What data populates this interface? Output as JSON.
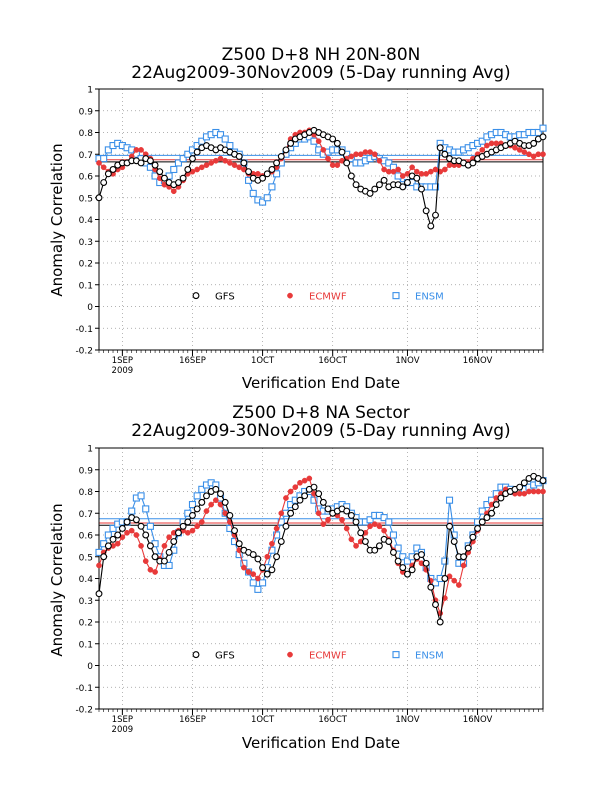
{
  "chart_data": [
    {
      "type": "line",
      "title": "Z500 D+8 NH 20N-80N",
      "subtitle": "22Aug2009-30Nov2009 (5-Day running Avg)",
      "xlabel": "Verification End Date",
      "ylabel": "Anomaly Correlation",
      "xlim": [
        "2009-08-27",
        "2009-11-30"
      ],
      "ylim": [
        -0.2,
        1
      ],
      "yticks": [
        "-0.2",
        "-0.1",
        "0",
        "0.1",
        "0.2",
        "0.3",
        "0.4",
        "0.5",
        "0.6",
        "0.7",
        "0.8",
        "0.9",
        "1"
      ],
      "xticks": [
        {
          "date": "2009-09-01",
          "label": "1SEP",
          "sublabel": "2009"
        },
        {
          "date": "2009-09-16",
          "label": "16SEP",
          "sublabel": ""
        },
        {
          "date": "2009-10-01",
          "label": "1OCT",
          "sublabel": ""
        },
        {
          "date": "2009-10-16",
          "label": "16OCT",
          "sublabel": ""
        },
        {
          "date": "2009-11-01",
          "label": "1NOV",
          "sublabel": ""
        },
        {
          "date": "2009-11-16",
          "label": "16NOV",
          "sublabel": ""
        }
      ],
      "grid": true,
      "legend_position": "bottom",
      "legend": [
        "GFS",
        "ECMWF",
        "ENSM"
      ],
      "mean_lines": [
        {
          "series": "GFS",
          "value": 0.665,
          "color": "#000000"
        },
        {
          "series": "ECMWF",
          "value": 0.675,
          "color": "#e83a3a"
        },
        {
          "series": "ENSM",
          "value": 0.695,
          "color": "#3a8fe8"
        }
      ],
      "x": [
        "2009-08-27",
        "2009-08-28",
        "2009-08-29",
        "2009-08-30",
        "2009-08-31",
        "2009-09-01",
        "2009-09-02",
        "2009-09-03",
        "2009-09-04",
        "2009-09-05",
        "2009-09-06",
        "2009-09-07",
        "2009-09-08",
        "2009-09-09",
        "2009-09-10",
        "2009-09-11",
        "2009-09-12",
        "2009-09-13",
        "2009-09-14",
        "2009-09-15",
        "2009-09-16",
        "2009-09-17",
        "2009-09-18",
        "2009-09-19",
        "2009-09-20",
        "2009-09-21",
        "2009-09-22",
        "2009-09-23",
        "2009-09-24",
        "2009-09-25",
        "2009-09-26",
        "2009-09-27",
        "2009-09-28",
        "2009-09-29",
        "2009-09-30",
        "2009-10-01",
        "2009-10-02",
        "2009-10-03",
        "2009-10-04",
        "2009-10-05",
        "2009-10-06",
        "2009-10-07",
        "2009-10-08",
        "2009-10-09",
        "2009-10-10",
        "2009-10-11",
        "2009-10-12",
        "2009-10-13",
        "2009-10-14",
        "2009-10-15",
        "2009-10-16",
        "2009-10-17",
        "2009-10-18",
        "2009-10-19",
        "2009-10-20",
        "2009-10-21",
        "2009-10-22",
        "2009-10-23",
        "2009-10-24",
        "2009-10-25",
        "2009-10-26",
        "2009-10-27",
        "2009-10-28",
        "2009-10-29",
        "2009-10-30",
        "2009-10-31",
        "2009-11-01",
        "2009-11-02",
        "2009-11-03",
        "2009-11-04",
        "2009-11-05",
        "2009-11-06",
        "2009-11-07",
        "2009-11-08",
        "2009-11-09",
        "2009-11-10",
        "2009-11-11",
        "2009-11-12",
        "2009-11-13",
        "2009-11-14",
        "2009-11-15",
        "2009-11-16",
        "2009-11-17",
        "2009-11-18",
        "2009-11-19",
        "2009-11-20",
        "2009-11-21",
        "2009-11-22",
        "2009-11-23",
        "2009-11-24",
        "2009-11-25",
        "2009-11-26",
        "2009-11-27",
        "2009-11-28",
        "2009-11-29",
        "2009-11-30"
      ],
      "series": [
        {
          "name": "GFS",
          "color": "#000000",
          "marker": "open-circle",
          "values": [
            0.5,
            0.57,
            0.61,
            0.63,
            0.65,
            0.66,
            0.66,
            0.67,
            0.67,
            0.66,
            0.68,
            0.67,
            0.65,
            0.62,
            0.59,
            0.57,
            0.56,
            0.57,
            0.59,
            0.63,
            0.68,
            0.71,
            0.73,
            0.74,
            0.73,
            0.72,
            0.73,
            0.72,
            0.71,
            0.7,
            0.69,
            0.66,
            0.62,
            0.59,
            0.58,
            0.59,
            0.61,
            0.63,
            0.66,
            0.69,
            0.72,
            0.75,
            0.77,
            0.78,
            0.79,
            0.8,
            0.81,
            0.8,
            0.79,
            0.78,
            0.77,
            0.75,
            0.71,
            0.66,
            0.6,
            0.56,
            0.54,
            0.53,
            0.52,
            0.54,
            0.56,
            0.58,
            0.55,
            0.56,
            0.56,
            0.55,
            0.57,
            0.6,
            0.59,
            0.54,
            0.44,
            0.37,
            0.42,
            0.73,
            0.7,
            0.68,
            0.67,
            0.67,
            0.66,
            0.65,
            0.66,
            0.68,
            0.69,
            0.7,
            0.71,
            0.72,
            0.73,
            0.74,
            0.75,
            0.76,
            0.75,
            0.74,
            0.74,
            0.75,
            0.77,
            0.78
          ]
        },
        {
          "name": "ECMWF",
          "color": "#e83a3a",
          "marker": "filled-circle",
          "values": [
            0.66,
            0.64,
            0.62,
            0.61,
            0.63,
            0.64,
            0.66,
            0.69,
            0.72,
            0.72,
            0.7,
            0.68,
            0.63,
            0.59,
            0.56,
            0.55,
            0.53,
            0.55,
            0.58,
            0.61,
            0.62,
            0.63,
            0.64,
            0.65,
            0.66,
            0.67,
            0.68,
            0.67,
            0.66,
            0.65,
            0.64,
            0.63,
            0.61,
            0.61,
            0.61,
            0.6,
            0.61,
            0.62,
            0.64,
            0.68,
            0.72,
            0.77,
            0.79,
            0.8,
            0.8,
            0.81,
            0.79,
            0.76,
            0.72,
            0.68,
            0.65,
            0.65,
            0.67,
            0.68,
            0.69,
            0.7,
            0.7,
            0.71,
            0.71,
            0.7,
            0.67,
            0.63,
            0.62,
            0.62,
            0.63,
            0.6,
            0.61,
            0.64,
            0.62,
            0.61,
            0.61,
            0.62,
            0.63,
            0.62,
            0.63,
            0.65,
            0.65,
            0.65,
            0.66,
            0.66,
            0.68,
            0.7,
            0.72,
            0.74,
            0.75,
            0.75,
            0.75,
            0.74,
            0.74,
            0.73,
            0.72,
            0.71,
            0.7,
            0.69,
            0.7,
            0.7
          ]
        },
        {
          "name": "ENSM",
          "color": "#3a8fe8",
          "marker": "open-square",
          "values": [
            0.68,
            0.68,
            0.72,
            0.74,
            0.75,
            0.74,
            0.73,
            0.72,
            0.7,
            0.68,
            0.66,
            0.64,
            0.6,
            0.57,
            0.58,
            0.6,
            0.63,
            0.66,
            0.68,
            0.7,
            0.72,
            0.74,
            0.76,
            0.78,
            0.79,
            0.8,
            0.79,
            0.77,
            0.74,
            0.71,
            0.7,
            0.66,
            0.58,
            0.52,
            0.49,
            0.48,
            0.5,
            0.55,
            0.61,
            0.66,
            0.7,
            0.73,
            0.75,
            0.77,
            0.77,
            0.78,
            0.76,
            0.72,
            0.7,
            0.71,
            0.72,
            0.72,
            0.72,
            0.7,
            0.68,
            0.66,
            0.66,
            0.67,
            0.68,
            0.69,
            0.68,
            0.67,
            0.66,
            0.64,
            0.6,
            0.56,
            0.57,
            0.57,
            0.55,
            0.55,
            0.55,
            0.55,
            0.55,
            0.75,
            0.73,
            0.72,
            0.71,
            0.71,
            0.72,
            0.73,
            0.74,
            0.75,
            0.76,
            0.78,
            0.79,
            0.8,
            0.8,
            0.79,
            0.78,
            0.78,
            0.79,
            0.79,
            0.8,
            0.8,
            0.8,
            0.82
          ]
        }
      ]
    },
    {
      "type": "line",
      "title": "Z500 D+8 NA Sector",
      "subtitle": "22Aug2009-30Nov2009 (5-Day running Avg)",
      "xlabel": "Verification End Date",
      "ylabel": "Anomaly Correlation",
      "xlim": [
        "2009-08-27",
        "2009-11-30"
      ],
      "ylim": [
        -0.2,
        1
      ],
      "yticks": [
        "-0.2",
        "-0.1",
        "0",
        "0.1",
        "0.2",
        "0.3",
        "0.4",
        "0.5",
        "0.6",
        "0.7",
        "0.8",
        "0.9",
        "1"
      ],
      "xticks": [
        {
          "date": "2009-09-01",
          "label": "1SEP",
          "sublabel": "2009"
        },
        {
          "date": "2009-09-16",
          "label": "16SEP",
          "sublabel": ""
        },
        {
          "date": "2009-10-01",
          "label": "1OCT",
          "sublabel": ""
        },
        {
          "date": "2009-10-16",
          "label": "16OCT",
          "sublabel": ""
        },
        {
          "date": "2009-11-01",
          "label": "1NOV",
          "sublabel": ""
        },
        {
          "date": "2009-11-16",
          "label": "16NOV",
          "sublabel": ""
        }
      ],
      "grid": true,
      "legend_position": "bottom",
      "legend": [
        "GFS",
        "ECMWF",
        "ENSM"
      ],
      "mean_lines": [
        {
          "series": "GFS",
          "value": 0.645,
          "color": "#000000"
        },
        {
          "series": "ECMWF",
          "value": 0.655,
          "color": "#e83a3a"
        },
        {
          "series": "ENSM",
          "value": 0.675,
          "color": "#3a8fe8"
        }
      ],
      "x": [
        "2009-08-27",
        "2009-08-28",
        "2009-08-29",
        "2009-08-30",
        "2009-08-31",
        "2009-09-01",
        "2009-09-02",
        "2009-09-03",
        "2009-09-04",
        "2009-09-05",
        "2009-09-06",
        "2009-09-07",
        "2009-09-08",
        "2009-09-09",
        "2009-09-10",
        "2009-09-11",
        "2009-09-12",
        "2009-09-13",
        "2009-09-14",
        "2009-09-15",
        "2009-09-16",
        "2009-09-17",
        "2009-09-18",
        "2009-09-19",
        "2009-09-20",
        "2009-09-21",
        "2009-09-22",
        "2009-09-23",
        "2009-09-24",
        "2009-09-25",
        "2009-09-26",
        "2009-09-27",
        "2009-09-28",
        "2009-09-29",
        "2009-09-30",
        "2009-10-01",
        "2009-10-02",
        "2009-10-03",
        "2009-10-04",
        "2009-10-05",
        "2009-10-06",
        "2009-10-07",
        "2009-10-08",
        "2009-10-09",
        "2009-10-10",
        "2009-10-11",
        "2009-10-12",
        "2009-10-13",
        "2009-10-14",
        "2009-10-15",
        "2009-10-16",
        "2009-10-17",
        "2009-10-18",
        "2009-10-19",
        "2009-10-20",
        "2009-10-21",
        "2009-10-22",
        "2009-10-23",
        "2009-10-24",
        "2009-10-25",
        "2009-10-26",
        "2009-10-27",
        "2009-10-28",
        "2009-10-29",
        "2009-10-30",
        "2009-10-31",
        "2009-11-01",
        "2009-11-02",
        "2009-11-03",
        "2009-11-04",
        "2009-11-05",
        "2009-11-06",
        "2009-11-07",
        "2009-11-08",
        "2009-11-09",
        "2009-11-10",
        "2009-11-11",
        "2009-11-12",
        "2009-11-13",
        "2009-11-14",
        "2009-11-15",
        "2009-11-16",
        "2009-11-17",
        "2009-11-18",
        "2009-11-19",
        "2009-11-20",
        "2009-11-21",
        "2009-11-22",
        "2009-11-23",
        "2009-11-24",
        "2009-11-25",
        "2009-11-26",
        "2009-11-27",
        "2009-11-28",
        "2009-11-29",
        "2009-11-30"
      ],
      "series": [
        {
          "name": "GFS",
          "color": "#000000",
          "marker": "open-circle",
          "values": [
            0.33,
            0.5,
            0.55,
            0.58,
            0.6,
            0.63,
            0.66,
            0.68,
            0.67,
            0.64,
            0.6,
            0.55,
            0.5,
            0.48,
            0.48,
            0.52,
            0.57,
            0.61,
            0.64,
            0.66,
            0.69,
            0.72,
            0.75,
            0.78,
            0.8,
            0.81,
            0.79,
            0.75,
            0.69,
            0.62,
            0.56,
            0.53,
            0.52,
            0.51,
            0.49,
            0.45,
            0.42,
            0.44,
            0.5,
            0.57,
            0.64,
            0.7,
            0.73,
            0.76,
            0.78,
            0.81,
            0.82,
            0.79,
            0.75,
            0.72,
            0.7,
            0.71,
            0.72,
            0.71,
            0.69,
            0.66,
            0.61,
            0.57,
            0.53,
            0.53,
            0.55,
            0.58,
            0.57,
            0.52,
            0.48,
            0.45,
            0.42,
            0.44,
            0.5,
            0.51,
            0.47,
            0.36,
            0.28,
            0.2,
            0.4,
            0.64,
            0.57,
            0.5,
            0.5,
            0.54,
            0.59,
            0.63,
            0.66,
            0.68,
            0.7,
            0.74,
            0.77,
            0.79,
            0.8,
            0.81,
            0.82,
            0.84,
            0.86,
            0.87,
            0.86,
            0.85
          ]
        },
        {
          "name": "ECMWF",
          "color": "#e83a3a",
          "marker": "filled-circle",
          "values": [
            0.46,
            0.52,
            0.54,
            0.55,
            0.56,
            0.59,
            0.61,
            0.62,
            0.6,
            0.55,
            0.48,
            0.44,
            0.43,
            0.49,
            0.55,
            0.59,
            0.61,
            0.62,
            0.62,
            0.61,
            0.62,
            0.64,
            0.66,
            0.71,
            0.74,
            0.76,
            0.74,
            0.7,
            0.66,
            0.6,
            0.53,
            0.45,
            0.43,
            0.42,
            0.4,
            0.44,
            0.5,
            0.56,
            0.63,
            0.7,
            0.77,
            0.8,
            0.82,
            0.84,
            0.85,
            0.86,
            0.79,
            0.7,
            0.65,
            0.67,
            0.7,
            0.69,
            0.67,
            0.63,
            0.58,
            0.55,
            0.57,
            0.61,
            0.64,
            0.65,
            0.64,
            0.62,
            0.58,
            0.53,
            0.47,
            0.43,
            0.42,
            0.46,
            0.49,
            0.47,
            0.44,
            0.39,
            0.3,
            0.24,
            0.31,
            0.41,
            0.39,
            0.37,
            0.46,
            0.52,
            0.57,
            0.62,
            0.66,
            0.7,
            0.74,
            0.77,
            0.79,
            0.81,
            0.8,
            0.79,
            0.79,
            0.79,
            0.8,
            0.8,
            0.8,
            0.8
          ]
        },
        {
          "name": "ENSM",
          "color": "#3a8fe8",
          "marker": "open-square",
          "values": [
            0.52,
            0.56,
            0.6,
            0.63,
            0.65,
            0.66,
            0.66,
            0.71,
            0.77,
            0.78,
            0.72,
            0.64,
            0.56,
            0.5,
            0.46,
            0.46,
            0.53,
            0.61,
            0.66,
            0.7,
            0.74,
            0.78,
            0.81,
            0.83,
            0.84,
            0.83,
            0.77,
            0.7,
            0.63,
            0.57,
            0.51,
            0.47,
            0.43,
            0.38,
            0.35,
            0.38,
            0.45,
            0.53,
            0.6,
            0.66,
            0.7,
            0.74,
            0.76,
            0.78,
            0.8,
            0.8,
            0.76,
            0.72,
            0.71,
            0.71,
            0.72,
            0.73,
            0.74,
            0.73,
            0.7,
            0.68,
            0.66,
            0.66,
            0.67,
            0.69,
            0.69,
            0.68,
            0.66,
            0.6,
            0.54,
            0.5,
            0.48,
            0.5,
            0.54,
            0.52,
            0.45,
            0.4,
            0.38,
            0.4,
            0.48,
            0.76,
            0.6,
            0.47,
            0.47,
            0.55,
            0.6,
            0.66,
            0.71,
            0.74,
            0.76,
            0.79,
            0.82,
            0.82,
            0.81,
            0.8,
            0.8,
            0.81,
            0.82,
            0.83,
            0.84,
            0.85
          ]
        }
      ]
    }
  ]
}
